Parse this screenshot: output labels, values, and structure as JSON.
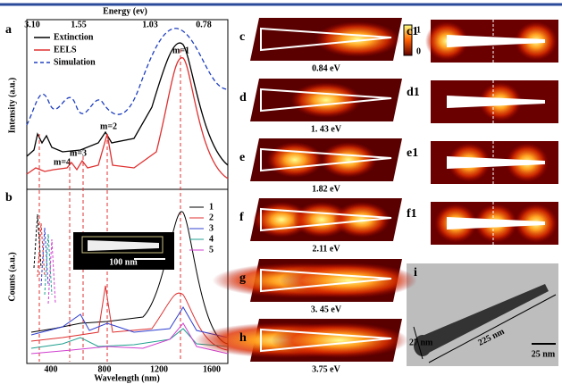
{
  "panel_a": {
    "label": "a",
    "top_axis_title": "Energy (ev)",
    "top_ticks": [
      "3.10",
      "1.55",
      "1.03",
      "0.78"
    ],
    "y_axis_title": "Intensity (a.u.)",
    "legend": [
      "Extinction",
      "EELS",
      "Simulation"
    ],
    "mode_labels": [
      "m=1",
      "m=2",
      "m=3",
      "m=4"
    ]
  },
  "panel_b": {
    "label": "b",
    "y_axis_title": "Counts (a.u.)",
    "legend": [
      "1",
      "2",
      "3",
      "4",
      "5"
    ],
    "scale_bar": "100 nm",
    "x_ticks": [
      "400",
      "800",
      "1200",
      "1600"
    ],
    "x_axis_title": "Wavelength (nm)"
  },
  "maps": [
    {
      "label": "c",
      "energy": "0.84 eV"
    },
    {
      "label": "d",
      "energy": "1. 43 eV"
    },
    {
      "label": "e",
      "energy": "1.82 eV"
    },
    {
      "label": "f",
      "energy": "2.11 eV"
    },
    {
      "label": "g",
      "energy": "3. 45 eV"
    },
    {
      "label": "h",
      "energy": "3.75 eV"
    }
  ],
  "colorbar": {
    "max": "1",
    "min": "0"
  },
  "sim_maps": [
    {
      "label": "c1"
    },
    {
      "label": "d1"
    },
    {
      "label": "e1"
    },
    {
      "label": "f1"
    }
  ],
  "panel_i": {
    "label": "i",
    "width": "27 nm",
    "length": "225 nm",
    "scale_bar": "25 nm"
  }
}
